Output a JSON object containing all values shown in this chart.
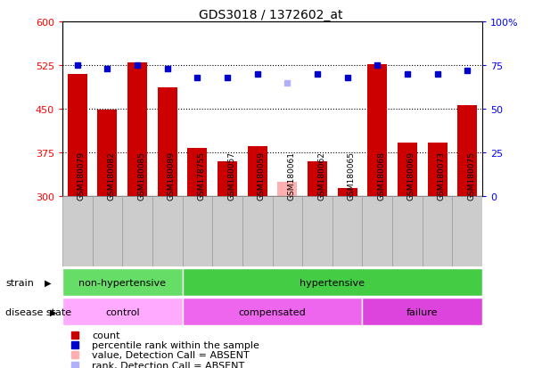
{
  "title": "GDS3018 / 1372602_at",
  "samples": [
    "GSM180079",
    "GSM180082",
    "GSM180085",
    "GSM180089",
    "GSM178755",
    "GSM180057",
    "GSM180059",
    "GSM180061",
    "GSM180062",
    "GSM180065",
    "GSM180068",
    "GSM180069",
    "GSM180073",
    "GSM180075"
  ],
  "bar_values": [
    510,
    448,
    530,
    487,
    383,
    360,
    386,
    325,
    360,
    315,
    527,
    393,
    392,
    457
  ],
  "bar_absent": [
    false,
    false,
    false,
    false,
    false,
    false,
    false,
    true,
    false,
    false,
    false,
    false,
    false,
    false
  ],
  "dot_values": [
    75,
    73,
    75,
    73,
    68,
    68,
    70,
    65,
    70,
    68,
    75,
    70,
    70,
    72
  ],
  "dot_absent": [
    false,
    false,
    false,
    false,
    false,
    false,
    false,
    true,
    false,
    false,
    false,
    false,
    false,
    false
  ],
  "bar_color": "#cc0000",
  "bar_absent_color": "#ffb0b0",
  "dot_color": "#0000cc",
  "dot_absent_color": "#b0b0ff",
  "ylim_left": [
    300,
    600
  ],
  "ylim_right": [
    0,
    100
  ],
  "yticks_left": [
    300,
    375,
    450,
    525,
    600
  ],
  "yticks_right": [
    0,
    25,
    50,
    75,
    100
  ],
  "hlines": [
    375,
    450,
    525
  ],
  "strain_groups": [
    {
      "label": "non-hypertensive",
      "start": 0,
      "end": 4,
      "color": "#66dd66"
    },
    {
      "label": "hypertensive",
      "start": 4,
      "end": 14,
      "color": "#44cc44"
    }
  ],
  "disease_groups": [
    {
      "label": "control",
      "start": 0,
      "end": 4,
      "color": "#ffaaff"
    },
    {
      "label": "compensated",
      "start": 4,
      "end": 10,
      "color": "#ee66ee"
    },
    {
      "label": "failure",
      "start": 10,
      "end": 14,
      "color": "#dd44dd"
    }
  ],
  "legend_items": [
    {
      "label": "count",
      "color": "#cc0000"
    },
    {
      "label": "percentile rank within the sample",
      "color": "#0000cc"
    },
    {
      "label": "value, Detection Call = ABSENT",
      "color": "#ffb0b0"
    },
    {
      "label": "rank, Detection Call = ABSENT",
      "color": "#b0b0ff"
    }
  ],
  "bg_color": "#ffffff",
  "plot_bg": "#ffffff",
  "label_row_color": "#cccccc",
  "label_row_border": "#999999"
}
